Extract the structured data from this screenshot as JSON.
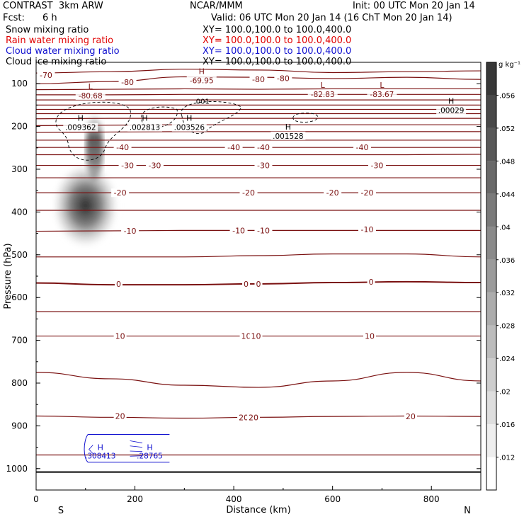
{
  "header": {
    "model": "CONTRAST  3km ARW",
    "org": "NCAR/MMM",
    "init": "Init: 00 UTC Mon 20 Jan 14",
    "fcst_label": "Fcst:",
    "fcst_value": "6 h",
    "valid": "Valid: 06 UTC Mon 20 Jan 14 (16 ChT Mon 20 Jan 14)"
  },
  "fields": [
    {
      "name": "Snow mixing ratio",
      "xy": "XY= 100.0,100.0 to 100.0,400.0",
      "color": "#000000"
    },
    {
      "name": "Rain water mixing ratio",
      "xy": "XY= 100.0,100.0 to 100.0,400.0",
      "color": "#e00000"
    },
    {
      "name": "Cloud water mixing ratio",
      "xy": "XY= 100.0,100.0 to 100.0,400.0",
      "color": "#1010d0"
    },
    {
      "name": "Cloud ice mixing ratio",
      "xy": "XY= 100.0,100.0 to 100.0,400.0",
      "color": "#000000"
    }
  ],
  "colors": {
    "temperature": "#7a1010",
    "cloud_water": "#1010d0",
    "cloud_ice": "#000000"
  },
  "chart_data": {
    "type": "heatmap",
    "xlabel": "Distance (km)",
    "ylabel": "Pressure (hPa)",
    "xlim": [
      0,
      900
    ],
    "ylim": [
      1050,
      50
    ],
    "x_ticks": [
      "0",
      "200",
      "400",
      "600",
      "800"
    ],
    "y_ticks": [
      "100",
      "200",
      "300",
      "400",
      "500",
      "600",
      "700",
      "800",
      "900",
      "1000"
    ],
    "x_end_labels": [
      "S",
      "N"
    ],
    "grid": false,
    "colorbar": {
      "unit": "g kg⁻¹",
      "ticks": [
        ".012",
        ".016",
        ".02",
        ".024",
        ".028",
        ".032",
        ".036",
        ".04",
        ".044",
        ".048",
        ".052",
        ".056"
      ],
      "min": 0.008,
      "max": 0.06
    },
    "shading_blob": {
      "x": 100,
      "p_top": 180,
      "p_bottom": 450,
      "peak": 0.058
    },
    "surface_pressure": 1008,
    "temperature_lines": [
      {
        "p": [
          75,
          72,
          66,
          68,
          74,
          72,
          70
        ],
        "label": "-70",
        "at": [
          [
            20,
            80
          ]
        ]
      },
      {
        "p": [
          100,
          95,
          84,
          85,
          88,
          85,
          90
        ],
        "label": "-80",
        "at": [
          [
            185,
            96
          ],
          [
            450,
            90
          ],
          [
            500,
            87
          ]
        ]
      },
      {
        "p": [
          114,
          113,
          112,
          113,
          112,
          112,
          112
        ]
      },
      {
        "p": [
          126,
          126,
          125,
          125,
          125,
          125,
          125
        ]
      },
      {
        "p": [
          138,
          138,
          138,
          138,
          138,
          138,
          138
        ]
      },
      {
        "p": [
          150,
          150,
          150,
          150,
          150,
          150,
          150
        ]
      },
      {
        "p": [
          160,
          160,
          160,
          160,
          160,
          160,
          160
        ]
      },
      {
        "p": [
          170,
          170,
          170,
          170,
          170,
          170,
          170
        ]
      },
      {
        "p": [
          182,
          181,
          181,
          181,
          181,
          181,
          181
        ]
      },
      {
        "p": [
          198,
          197,
          196,
          196,
          196,
          196,
          196
        ]
      },
      {
        "p": [
          214,
          213,
          212,
          212,
          212,
          212,
          212
        ]
      },
      {
        "p": [
          232,
          232,
          232,
          232,
          232,
          232,
          232
        ]
      },
      {
        "p": [
          249,
          249,
          249,
          249,
          249,
          249,
          249
        ],
        "label": "-40",
        "at": [
          [
            175,
            249
          ],
          [
            400,
            249
          ],
          [
            460,
            249
          ],
          [
            660,
            249
          ]
        ]
      },
      {
        "p": [
          266,
          266,
          266,
          266,
          266,
          266,
          265
        ]
      },
      {
        "p": [
          291,
          291,
          291,
          291,
          291,
          291,
          291
        ],
        "label": "-30",
        "at": [
          [
            185,
            291
          ],
          [
            240,
            291
          ],
          [
            460,
            291
          ],
          [
            690,
            291
          ]
        ]
      },
      {
        "p": [
          320,
          320,
          320,
          320,
          320,
          320,
          320
        ]
      },
      {
        "p": [
          355,
          355,
          355,
          355,
          355,
          355,
          355
        ],
        "label": "-20",
        "at": [
          [
            170,
            355
          ],
          [
            430,
            355
          ],
          [
            600,
            355
          ],
          [
            670,
            355
          ]
        ]
      },
      {
        "p": [
          396,
          396,
          396,
          396,
          396,
          396,
          396
        ]
      },
      {
        "p": [
          445,
          444,
          443,
          443,
          443,
          443,
          443
        ],
        "label": "-10",
        "at": [
          [
            190,
            444
          ],
          [
            410,
            443
          ],
          [
            460,
            443
          ],
          [
            670,
            441
          ]
        ]
      },
      {
        "p": [
          505,
          505,
          505,
          502,
          498,
          498,
          505
        ]
      },
      {
        "p": [
          566,
          570,
          570,
          568,
          565,
          563,
          565
        ],
        "label": "0",
        "at": [
          [
            167,
            568
          ],
          [
            425,
            568
          ],
          [
            450,
            568
          ],
          [
            678,
            563
          ]
        ],
        "bold": true
      },
      {
        "p": [
          633,
          633,
          633,
          633,
          633,
          633,
          633
        ]
      },
      {
        "p": [
          690,
          690,
          690,
          690,
          690,
          690,
          690
        ],
        "label": "10",
        "at": [
          [
            170,
            690
          ],
          [
            425,
            690
          ],
          [
            445,
            690
          ],
          [
            675,
            690
          ]
        ]
      },
      {
        "p": [
          775,
          790,
          805,
          810,
          795,
          775,
          795
        ]
      },
      {
        "p": [
          877,
          880,
          882,
          880,
          878,
          877,
          878
        ],
        "label": "20",
        "at": [
          [
            170,
            877
          ],
          [
            420,
            880
          ],
          [
            440,
            880
          ],
          [
            758,
            878
          ]
        ]
      },
      {
        "p": [
          968,
          968,
          968,
          968,
          968,
          968,
          968
        ]
      }
    ],
    "temperature_line_x": [
      0,
      150,
      300,
      450,
      600,
      750,
      900
    ],
    "extrema_labels": [
      {
        "type": "L",
        "value": "-80.68",
        "x": 110,
        "p": 113
      },
      {
        "type": "H",
        "value": "-69.95",
        "x": 335,
        "p": 77
      },
      {
        "type": "L",
        "value": "-82.83",
        "x": 580,
        "p": 110
      },
      {
        "type": "L",
        "value": "-83.67",
        "x": 700,
        "p": 110
      },
      {
        "type": "H",
        "value": ".00029",
        "x": 840,
        "p": 147
      },
      {
        "type": "H",
        "value": ".009362",
        "x": 90,
        "p": 187
      },
      {
        "type": "H",
        "value": ".002813",
        "x": 220,
        "p": 187
      },
      {
        "type": "H",
        "value": ".003526",
        "x": 310,
        "p": 187
      },
      {
        "type": "H",
        "value": ".001528",
        "x": 510,
        "p": 207
      }
    ],
    "cloud_ice_contour_label": ".001",
    "cloud_water_labels": [
      {
        "type": "H",
        "value": ".308413",
        "x": 130,
        "p": 960
      },
      {
        "type": "H",
        "value": ".28765",
        "x": 230,
        "p": 960
      }
    ]
  }
}
